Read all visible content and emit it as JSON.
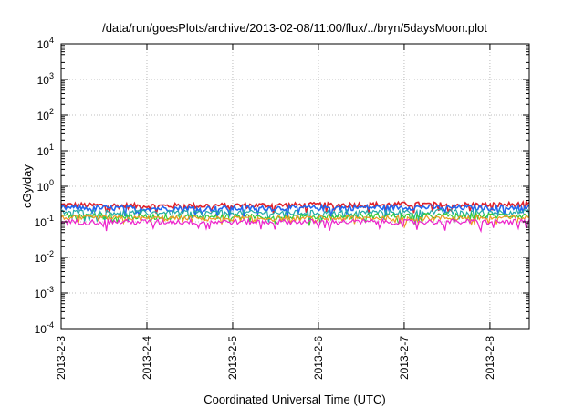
{
  "chart_data": {
    "type": "line",
    "title": "/data/run/goesPlots/archive/2013-02-08/11:00/flux/../bryn/5daysMoon.plot",
    "xlabel": "Coordinated Universal Time (UTC)",
    "ylabel": "cGy/day",
    "yscale": "log",
    "ylim": [
      0.0001,
      10000
    ],
    "xlim": [
      "2013-02-03 00:00",
      "2013-02-08 11:00"
    ],
    "x_ticks": [
      "2013-2-3",
      "2013-2-4",
      "2013-2-5",
      "2013-2-6",
      "2013-2-7",
      "2013-2-8"
    ],
    "y_ticks": [
      {
        "base": "10",
        "exp": "-4"
      },
      {
        "base": "10",
        "exp": "-3"
      },
      {
        "base": "10",
        "exp": "-2"
      },
      {
        "base": "10",
        "exp": "-1"
      },
      {
        "base": "10",
        "exp": "0"
      },
      {
        "base": "10",
        "exp": "1"
      },
      {
        "base": "10",
        "exp": "2"
      },
      {
        "base": "10",
        "exp": "3"
      },
      {
        "base": "10",
        "exp": "4"
      }
    ],
    "grid": true,
    "x": [
      "2013-02-03",
      "2013-02-04",
      "2013-02-05",
      "2013-02-06",
      "2013-02-07",
      "2013-02-08",
      "2013-02-08 11:00"
    ],
    "series": [
      {
        "color": "#e0202a",
        "values": [
          0.3,
          0.28,
          0.29,
          0.3,
          0.31,
          0.3,
          0.31
        ]
      },
      {
        "color": "#2266ee",
        "values": [
          0.25,
          0.24,
          0.24,
          0.25,
          0.26,
          0.25,
          0.26
        ]
      },
      {
        "color": "#22aaaa",
        "values": [
          0.19,
          0.18,
          0.18,
          0.18,
          0.19,
          0.19,
          0.19
        ]
      },
      {
        "color": "#33cc33",
        "values": [
          0.15,
          0.14,
          0.14,
          0.14,
          0.15,
          0.15,
          0.15
        ]
      },
      {
        "color": "#ee9922",
        "values": [
          0.13,
          0.125,
          0.125,
          0.125,
          0.13,
          0.13,
          0.13
        ]
      },
      {
        "color": "#ee22cc",
        "values": [
          0.1,
          0.1,
          0.1,
          0.1,
          0.1,
          0.1,
          0.1
        ]
      }
    ]
  }
}
